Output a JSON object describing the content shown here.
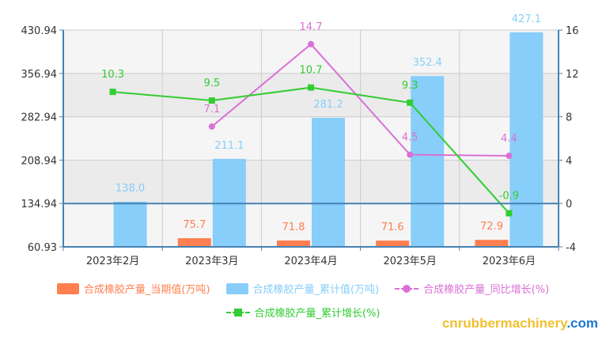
{
  "chart_data": {
    "type": "bar",
    "categories": [
      "2023年2月",
      "2023年3月",
      "2023年4月",
      "2023年5月",
      "2023年6月"
    ],
    "series": [
      {
        "name": "合成橡胶产量_当期值(万吨)",
        "kind": "bar",
        "axis": "left",
        "color": "#ff7f50",
        "values": [
          null,
          75.7,
          71.8,
          71.6,
          72.9
        ],
        "labels": [
          "",
          "75.7",
          "71.8",
          "71.6",
          "72.9"
        ]
      },
      {
        "name": "合成橡胶产量_累计值(万吨)",
        "kind": "bar",
        "axis": "left",
        "color": "#87cefa",
        "values": [
          138.0,
          211.1,
          281.2,
          352.4,
          427.1
        ],
        "labels": [
          "138.0",
          "211.1",
          "281.2",
          "352.4",
          "427.1"
        ]
      },
      {
        "name": "合成橡胶产量_同比增长(%)",
        "kind": "line",
        "axis": "right",
        "color": "#da70d6",
        "marker": "circle",
        "values": [
          null,
          7.1,
          14.7,
          4.5,
          4.4
        ],
        "labels": [
          "",
          "7.1",
          "14.7",
          "4.5",
          "4.4"
        ]
      },
      {
        "name": "合成橡胶产量_累计增长(%)",
        "kind": "line",
        "axis": "right",
        "color": "#32cd32",
        "marker": "square",
        "values": [
          10.3,
          9.5,
          10.7,
          9.3,
          -0.9
        ],
        "labels": [
          "10.3",
          "9.5",
          "10.7",
          "9.3",
          "-0.9"
        ]
      }
    ],
    "y_left": {
      "min": 60.93,
      "max": 430.94,
      "ticks": [
        "60.93",
        "134.94",
        "208.94",
        "282.94",
        "356.94",
        "430.94"
      ]
    },
    "y_right": {
      "min": -4,
      "max": 16,
      "ticks": [
        "-4",
        "0",
        "4",
        "8",
        "12",
        "16"
      ]
    },
    "grid": true,
    "legend_position": "bottom",
    "axis_color": "#4682b4",
    "title": "",
    "xlabel": "",
    "ylabel": ""
  },
  "watermark": {
    "part1": "cnrubbermachinery",
    "part2": ".com"
  }
}
